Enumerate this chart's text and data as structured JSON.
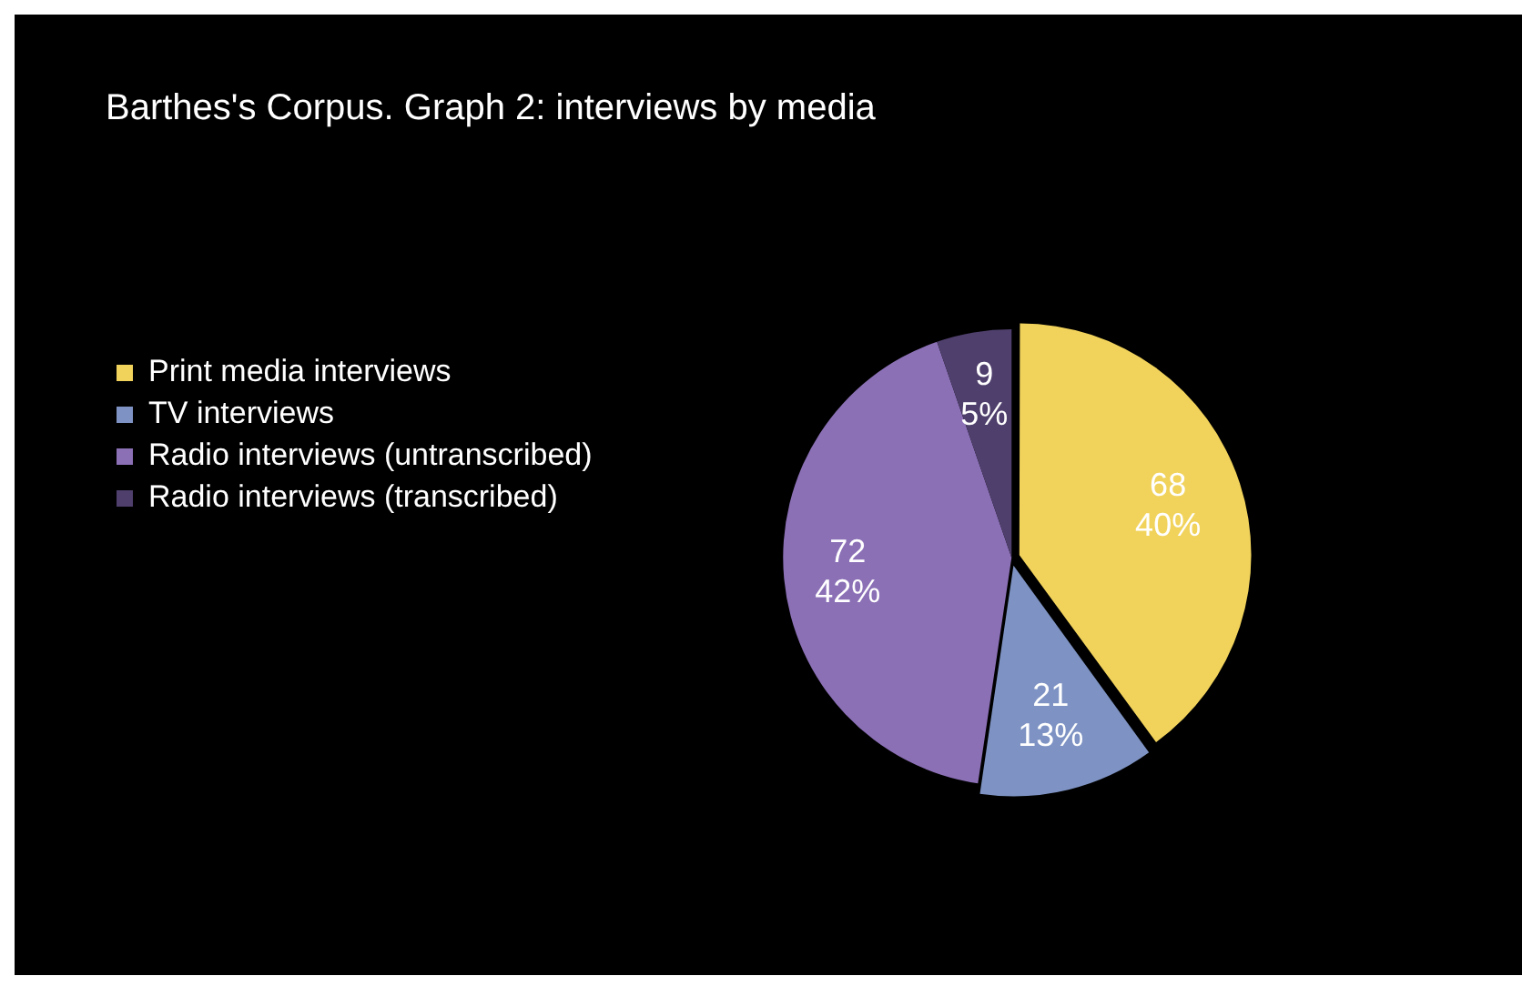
{
  "chart_data": {
    "type": "pie",
    "title": "Barthes's Corpus. Graph 2: interviews by media",
    "categories": [
      "Print media interviews",
      "TV interviews",
      "Radio interviews (untranscribed)",
      "Radio interviews (transcribed)"
    ],
    "values": [
      68,
      21,
      72,
      9
    ],
    "colors": [
      "#f1d35c",
      "#7e93c3",
      "#8b70b6",
      "#4f3f6c"
    ],
    "value_labels": [
      "68\n40%",
      "21\n13%",
      "72\n42%",
      "9\n5%"
    ],
    "legend": "left"
  }
}
